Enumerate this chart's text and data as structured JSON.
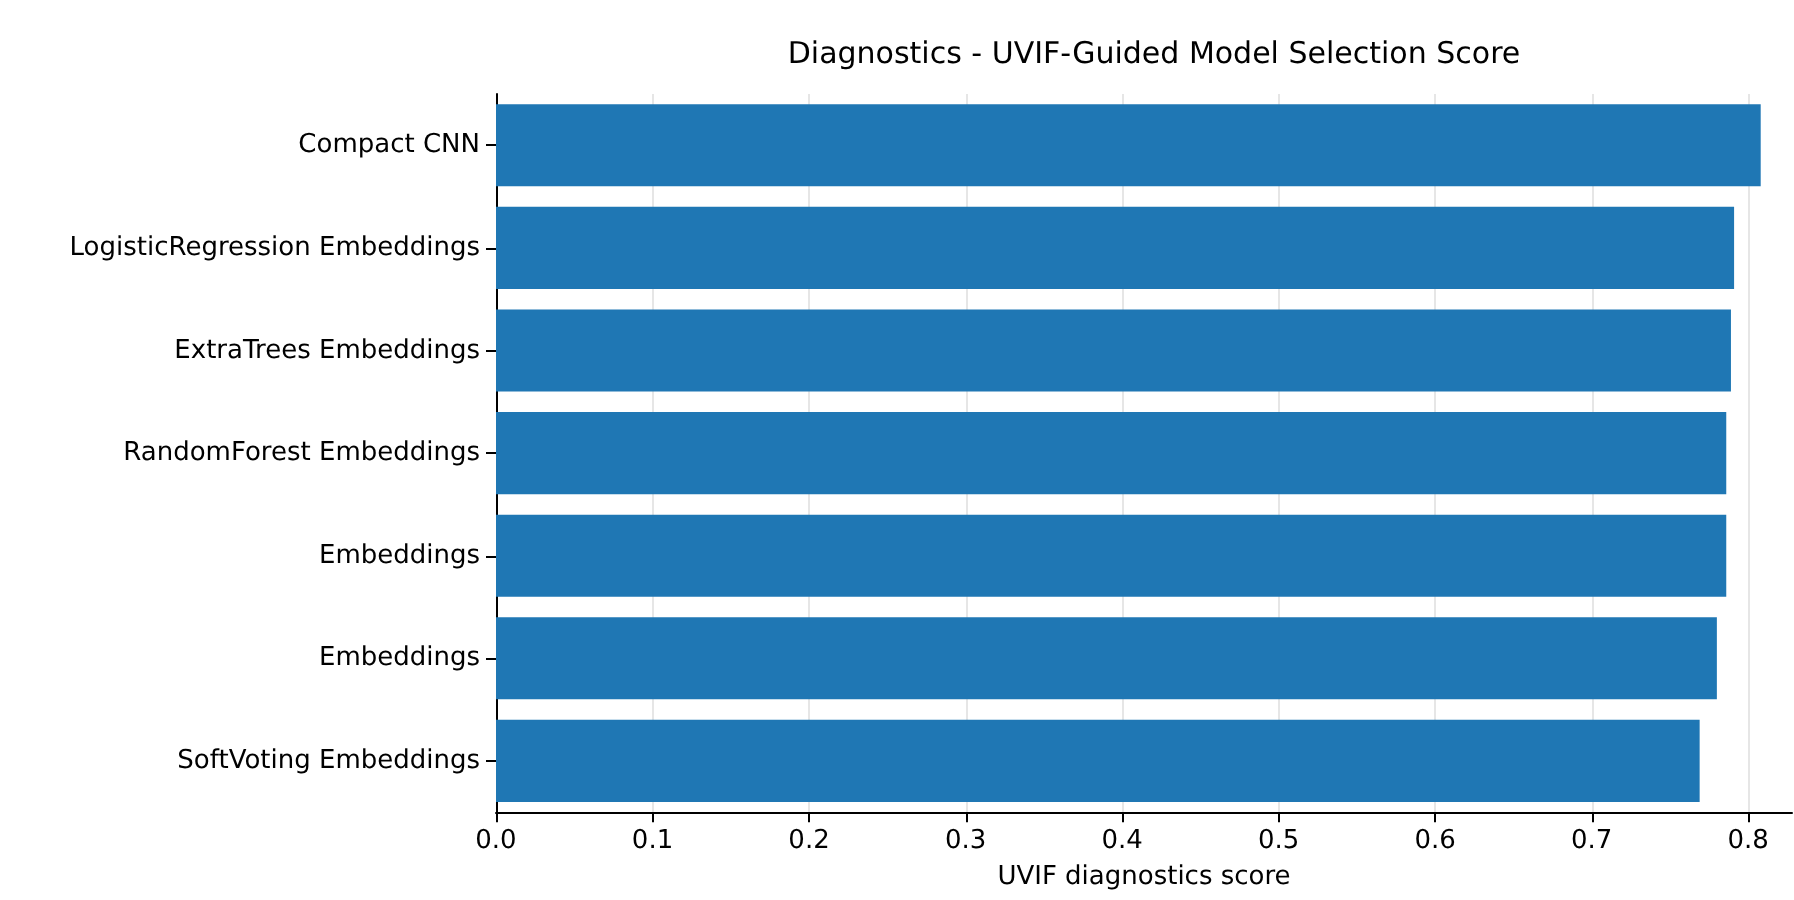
{
  "chart_data": {
    "type": "bar",
    "orientation": "horizontal",
    "title": "Diagnostics - UVIF-Guided Model Selection Score",
    "xlabel": "UVIF diagnostics score",
    "categories": [
      "Compact CNN",
      "LogisticRegression Embeddings",
      "ExtraTrees Embeddings",
      "RandomForest Embeddings",
      "Embeddings",
      "Embeddings",
      "SoftVoting Embeddings"
    ],
    "values": [
      0.808,
      0.791,
      0.789,
      0.786,
      0.786,
      0.78,
      0.769
    ],
    "color": "#1f77b4",
    "xlim": [
      0,
      0.828
    ],
    "xticks": [
      {
        "value": 0,
        "label": "0.0"
      },
      0.1,
      0.2,
      0.3,
      0.4,
      0.5,
      0.6,
      0.7,
      0.8
    ],
    "grid": "x"
  }
}
